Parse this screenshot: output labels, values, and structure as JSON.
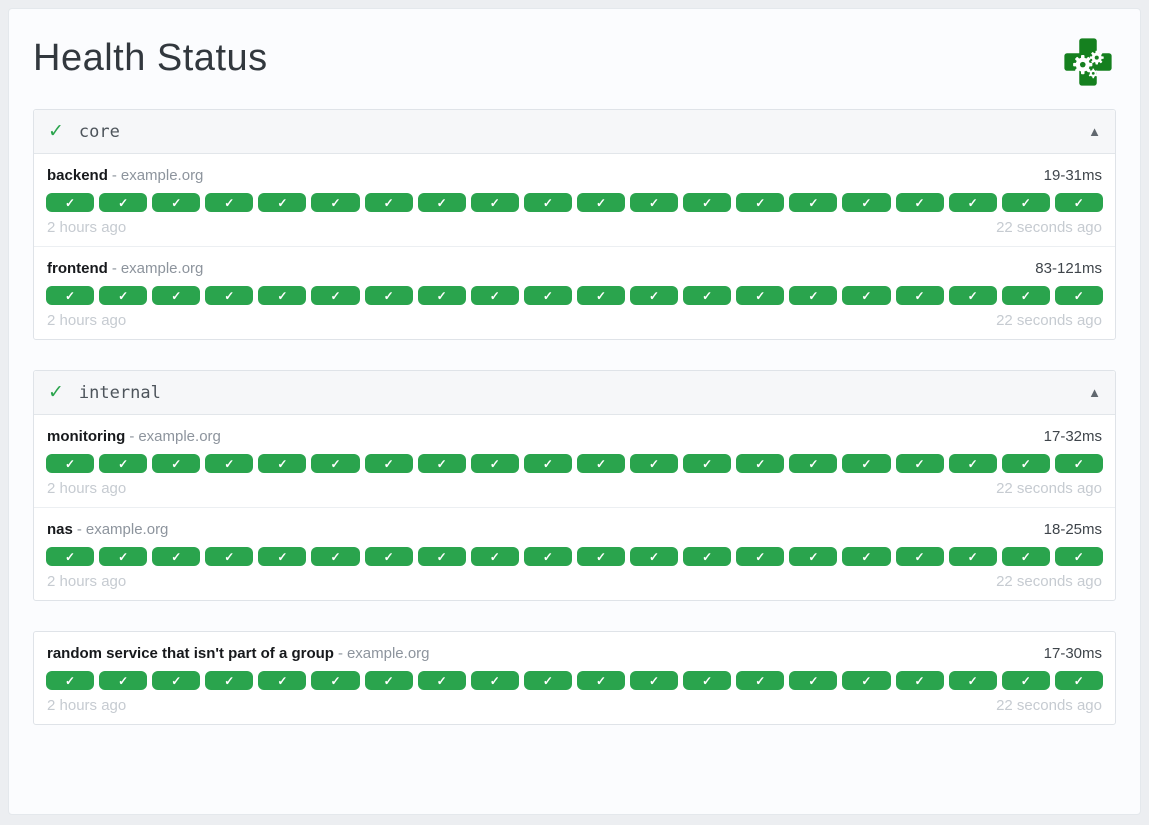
{
  "page": {
    "title": "Health Status"
  },
  "colors": {
    "success_green": "#2aa44d",
    "logo_green": "#15801f",
    "page_background": "#eceef1"
  },
  "icons": {
    "logo": "gatus-health-cross-gears",
    "group_status_check": "✓",
    "badge_check": "✓",
    "collapse_arrow": "▲"
  },
  "labels": {
    "host_separator": "-"
  },
  "groups": [
    {
      "name": "core",
      "services": [
        {
          "name": "backend",
          "hostname": "example.org",
          "response_time": "19-31ms",
          "history_count": 20,
          "oldest_result": "2 hours ago",
          "newest_result": "22 seconds ago"
        },
        {
          "name": "frontend",
          "hostname": "example.org",
          "response_time": "83-121ms",
          "history_count": 20,
          "oldest_result": "2 hours ago",
          "newest_result": "22 seconds ago"
        }
      ]
    },
    {
      "name": "internal",
      "services": [
        {
          "name": "monitoring",
          "hostname": "example.org",
          "response_time": "17-32ms",
          "history_count": 20,
          "oldest_result": "2 hours ago",
          "newest_result": "22 seconds ago"
        },
        {
          "name": "nas",
          "hostname": "example.org",
          "response_time": "18-25ms",
          "history_count": 20,
          "oldest_result": "2 hours ago",
          "newest_result": "22 seconds ago"
        }
      ]
    },
    {
      "name": "",
      "services": [
        {
          "name": "random service that isn't part of a group",
          "hostname": "example.org",
          "response_time": "17-30ms",
          "history_count": 20,
          "oldest_result": "2 hours ago",
          "newest_result": "22 seconds ago"
        }
      ]
    }
  ]
}
